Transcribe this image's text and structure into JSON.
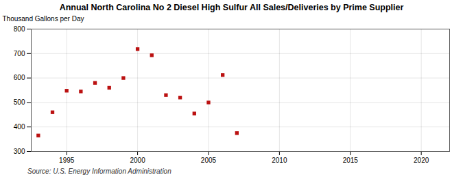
{
  "chart_data": {
    "type": "scatter",
    "title": "Annual North Carolina No 2 Diesel High Sulfur All Sales/Deliveries by Prime Supplier",
    "ylabel": "Thousand Gallons per Day",
    "source": "Source: U.S. Energy Information Administration",
    "x": [
      1993,
      1994,
      1995,
      1996,
      1997,
      1998,
      1999,
      2000,
      2001,
      2002,
      2003,
      2004,
      2005,
      2006,
      2007
    ],
    "values": [
      365,
      460,
      548,
      545,
      580,
      560,
      600,
      718,
      693,
      530,
      520,
      455,
      500,
      612,
      375
    ],
    "color": "#bb1111",
    "marker": "square",
    "xlim": [
      1992.5,
      2022
    ],
    "ylim": [
      300,
      800
    ],
    "xticks": [
      1995,
      2000,
      2005,
      2010,
      2015,
      2020
    ],
    "yticks": [
      300,
      400,
      500,
      600,
      700,
      800
    ],
    "grid": true
  }
}
